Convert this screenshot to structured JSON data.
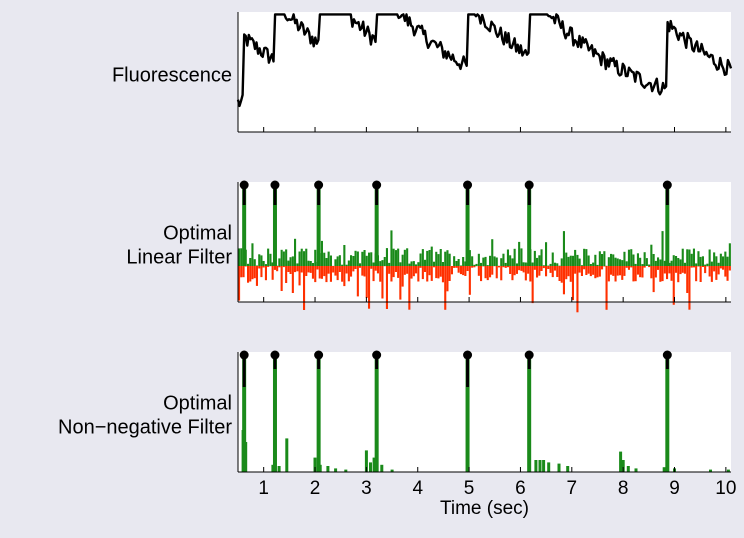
{
  "chart_data": {
    "type": "line",
    "xlabel": "Time (sec)",
    "xlim": [
      0.5,
      10.1
    ],
    "xticks": [
      1,
      2,
      3,
      4,
      5,
      6,
      7,
      8,
      9,
      10
    ],
    "spike_times": [
      0.62,
      1.22,
      2.07,
      3.2,
      4.97,
      6.17,
      8.86
    ],
    "colors": {
      "background": "#e8e8f0",
      "plot_bg": "#ffffff",
      "fluorescence": "#000000",
      "positive": "#1a8a1a",
      "negative": "#ff3000",
      "spike_marker": "#000000"
    },
    "panels": [
      {
        "label_lines": [
          "Fluorescence"
        ],
        "kind": "trace",
        "baseline": 0.25,
        "decay": 0.84,
        "jumps": [
          0.55,
          0.5,
          0.55,
          0.48,
          0.55,
          0.55,
          0.55
        ]
      },
      {
        "label_lines": [
          "Optimal",
          "Linear Filter"
        ],
        "kind": "signed_bars",
        "spike_height": 0.95,
        "noise_pos": 0.25,
        "noise_neg": 0.4
      },
      {
        "label_lines": [
          "Optimal",
          "Non−negative Filter"
        ],
        "kind": "sparse_bars",
        "spike_height": 0.92,
        "extras": [
          [
            0.6,
            0.35
          ],
          [
            0.65,
            0.25
          ],
          [
            1.18,
            0.06
          ],
          [
            1.3,
            0.05
          ],
          [
            1.45,
            0.28
          ],
          [
            2.0,
            0.12
          ],
          [
            2.1,
            0.06
          ],
          [
            2.25,
            0.05
          ],
          [
            2.4,
            0.03
          ],
          [
            2.6,
            0.02
          ],
          [
            3.0,
            0.18
          ],
          [
            3.08,
            0.08
          ],
          [
            3.15,
            0.12
          ],
          [
            3.3,
            0.06
          ],
          [
            3.5,
            0.02
          ],
          [
            6.3,
            0.1
          ],
          [
            6.38,
            0.1
          ],
          [
            6.45,
            0.1
          ],
          [
            6.55,
            0.08
          ],
          [
            6.75,
            0.07
          ],
          [
            6.92,
            0.05
          ],
          [
            7.95,
            0.17
          ],
          [
            8.0,
            0.1
          ],
          [
            8.1,
            0.05
          ],
          [
            8.25,
            0.03
          ],
          [
            8.8,
            0.04
          ],
          [
            9.0,
            0.03
          ],
          [
            9.7,
            0.02
          ],
          [
            10.05,
            0.02
          ]
        ]
      }
    ]
  }
}
